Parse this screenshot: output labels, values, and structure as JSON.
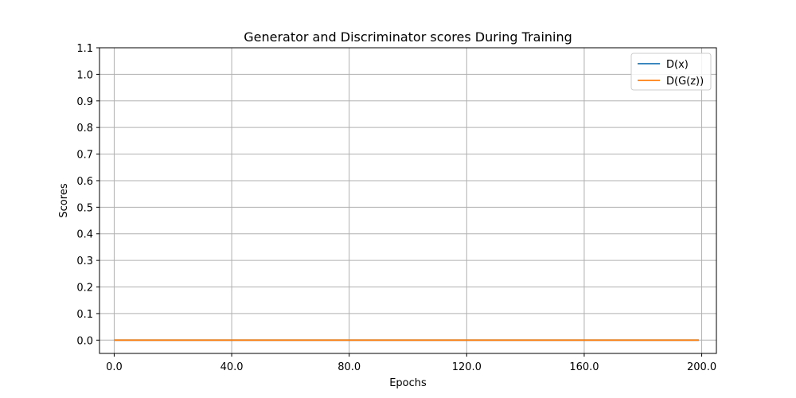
{
  "chart_data": {
    "type": "line",
    "title": "Generator and Discriminator scores During Training",
    "xlabel": "Epochs",
    "ylabel": "Scores",
    "xlim": [
      -5,
      205
    ],
    "ylim": [
      -0.05,
      1.1
    ],
    "xticks": [
      0,
      40,
      80,
      120,
      160,
      200
    ],
    "xtick_labels": [
      "0.0",
      "40.0",
      "80.0",
      "120.0",
      "160.0",
      "200.0"
    ],
    "yticks": [
      0.0,
      0.1,
      0.2,
      0.3,
      0.4,
      0.5,
      0.6,
      0.7,
      0.8,
      0.9,
      1.0,
      1.1
    ],
    "ytick_labels": [
      "0.0",
      "0.1",
      "0.2",
      "0.3",
      "0.4",
      "0.5",
      "0.6",
      "0.7",
      "0.8",
      "0.9",
      "1.0",
      "1.1"
    ],
    "grid": true,
    "legend_position": "top-right",
    "series": [
      {
        "name": "D(x)",
        "color": "#1f77b4",
        "x": [
          0,
          199
        ],
        "y": [
          0,
          0
        ]
      },
      {
        "name": "D(G(z))",
        "color": "#ff7f0e",
        "x": [
          0,
          199
        ],
        "y": [
          0,
          0
        ]
      }
    ]
  }
}
